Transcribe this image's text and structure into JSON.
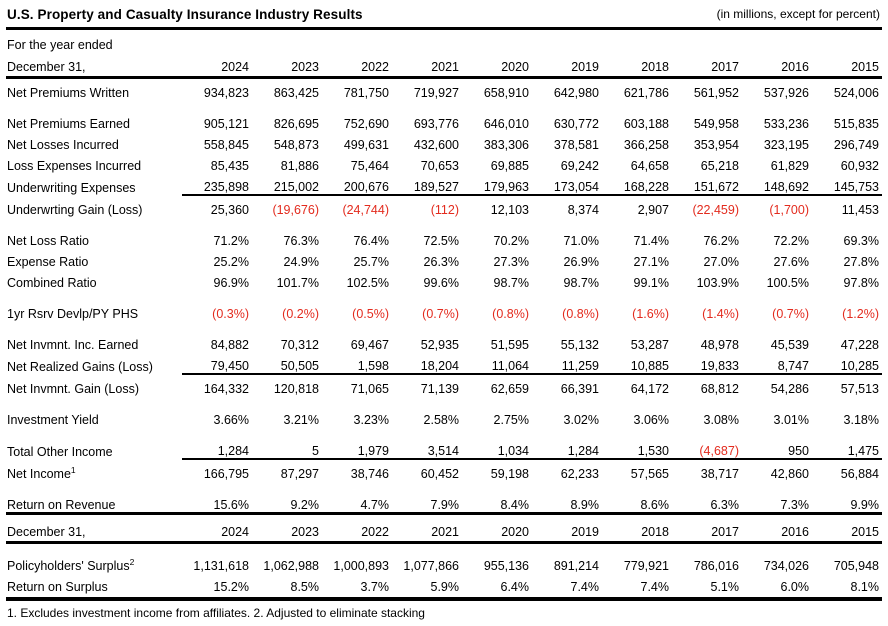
{
  "title": "U.S. Property and Casualty Insurance Industry Results",
  "units_note": "(in millions, except for percent)",
  "colors": {
    "negative": "#e32b1e",
    "text": "#000000",
    "rule": "#000000"
  },
  "header": {
    "line1": "For the year ended",
    "line2": "December 31,"
  },
  "years": [
    "2024",
    "2023",
    "2022",
    "2021",
    "2020",
    "2019",
    "2018",
    "2017",
    "2016",
    "2015"
  ],
  "main_rows": [
    {
      "label": "Net Premiums Written",
      "sup": "",
      "gap": false,
      "sum_line": false,
      "values": [
        "934,823",
        "863,425",
        "781,750",
        "719,927",
        "658,910",
        "642,980",
        "621,786",
        "561,952",
        "537,926",
        "524,006"
      ]
    },
    {
      "label": "Net Premiums Earned",
      "sup": "",
      "gap": true,
      "sum_line": false,
      "values": [
        "905,121",
        "826,695",
        "752,690",
        "693,776",
        "646,010",
        "630,772",
        "603,188",
        "549,958",
        "533,236",
        "515,835"
      ]
    },
    {
      "label": "Net Losses Incurred",
      "sup": "",
      "gap": false,
      "sum_line": false,
      "values": [
        "558,845",
        "548,873",
        "499,631",
        "432,600",
        "383,306",
        "378,581",
        "366,258",
        "353,954",
        "323,195",
        "296,749"
      ]
    },
    {
      "label": "Loss Expenses Incurred",
      "sup": "",
      "gap": false,
      "sum_line": false,
      "values": [
        "85,435",
        "81,886",
        "75,464",
        "70,653",
        "69,885",
        "69,242",
        "64,658",
        "65,218",
        "61,829",
        "60,932"
      ]
    },
    {
      "label": "Underwriting Expenses",
      "sup": "",
      "gap": false,
      "sum_line": true,
      "values": [
        "235,898",
        "215,002",
        "200,676",
        "189,527",
        "179,963",
        "173,054",
        "168,228",
        "151,672",
        "148,692",
        "145,753"
      ]
    },
    {
      "label": "Underwrting Gain (Loss)",
      "sup": "",
      "gap": false,
      "sum_line": false,
      "values": [
        "25,360",
        "(19,676)",
        "(24,744)",
        "(112)",
        "12,103",
        "8,374",
        "2,907",
        "(22,459)",
        "(1,700)",
        "11,453"
      ]
    },
    {
      "label": "Net Loss Ratio",
      "sup": "",
      "gap": true,
      "sum_line": false,
      "values": [
        "71.2%",
        "76.3%",
        "76.4%",
        "72.5%",
        "70.2%",
        "71.0%",
        "71.4%",
        "76.2%",
        "72.2%",
        "69.3%"
      ]
    },
    {
      "label": "Expense Ratio",
      "sup": "",
      "gap": false,
      "sum_line": false,
      "values": [
        "25.2%",
        "24.9%",
        "25.7%",
        "26.3%",
        "27.3%",
        "26.9%",
        "27.1%",
        "27.0%",
        "27.6%",
        "27.8%"
      ]
    },
    {
      "label": "Combined Ratio",
      "sup": "",
      "gap": false,
      "sum_line": false,
      "values": [
        "96.9%",
        "101.7%",
        "102.5%",
        "99.6%",
        "98.7%",
        "98.7%",
        "99.1%",
        "103.9%",
        "100.5%",
        "97.8%"
      ]
    },
    {
      "label": "1yr Rsrv Devlp/PY PHS",
      "sup": "",
      "gap": true,
      "sum_line": false,
      "values": [
        "(0.3%)",
        "(0.2%)",
        "(0.5%)",
        "(0.7%)",
        "(0.8%)",
        "(0.8%)",
        "(1.6%)",
        "(1.4%)",
        "(0.7%)",
        "(1.2%)"
      ]
    },
    {
      "label": "Net Invmnt. Inc. Earned",
      "sup": "",
      "gap": true,
      "sum_line": false,
      "values": [
        "84,882",
        "70,312",
        "69,467",
        "52,935",
        "51,595",
        "55,132",
        "53,287",
        "48,978",
        "45,539",
        "47,228"
      ]
    },
    {
      "label": "Net Realized Gains (Loss)",
      "sup": "",
      "gap": false,
      "sum_line": true,
      "values": [
        "79,450",
        "50,505",
        "1,598",
        "18,204",
        "11,064",
        "11,259",
        "10,885",
        "19,833",
        "8,747",
        "10,285"
      ]
    },
    {
      "label": "Net Invmnt. Gain (Loss)",
      "sup": "",
      "gap": false,
      "sum_line": false,
      "values": [
        "164,332",
        "120,818",
        "71,065",
        "71,139",
        "62,659",
        "66,391",
        "64,172",
        "68,812",
        "54,286",
        "57,513"
      ]
    },
    {
      "label": "Investment Yield",
      "sup": "",
      "gap": true,
      "sum_line": false,
      "values": [
        "3.66%",
        "3.21%",
        "3.23%",
        "2.58%",
        "2.75%",
        "3.02%",
        "3.06%",
        "3.08%",
        "3.01%",
        "3.18%"
      ]
    },
    {
      "label": "Total Other Income",
      "sup": "",
      "gap": true,
      "sum_line": true,
      "values": [
        "1,284",
        "5",
        "1,979",
        "3,514",
        "1,034",
        "1,284",
        "1,530",
        "(4,687)",
        "950",
        "1,475"
      ]
    },
    {
      "label": "Net Income",
      "sup": "1",
      "gap": false,
      "sum_line": false,
      "values": [
        "166,795",
        "87,297",
        "38,746",
        "60,452",
        "59,198",
        "62,233",
        "57,565",
        "38,717",
        "42,860",
        "56,884"
      ]
    },
    {
      "label": "Return on Revenue",
      "sup": "",
      "gap": true,
      "sum_line": false,
      "values": [
        "15.6%",
        "9.2%",
        "4.7%",
        "7.9%",
        "8.4%",
        "8.9%",
        "8.6%",
        "6.3%",
        "7.3%",
        "9.9%"
      ]
    }
  ],
  "surplus_header_label": "December 31,",
  "surplus_rows": [
    {
      "label": "Policyholders' Surplus",
      "sup": "2",
      "gap": true,
      "sum_line": false,
      "values": [
        "1,131,618",
        "1,062,988",
        "1,000,893",
        "1,077,866",
        "955,136",
        "891,214",
        "779,921",
        "786,016",
        "734,026",
        "705,948"
      ]
    },
    {
      "label": "Return on Surplus",
      "sup": "",
      "gap": false,
      "sum_line": false,
      "values": [
        "15.2%",
        "8.5%",
        "3.7%",
        "5.9%",
        "6.4%",
        "7.4%",
        "7.4%",
        "5.1%",
        "6.0%",
        "8.1%"
      ]
    }
  ],
  "footnote": "1. Excludes investment income from affiliates. 2. Adjusted to eliminate stacking"
}
